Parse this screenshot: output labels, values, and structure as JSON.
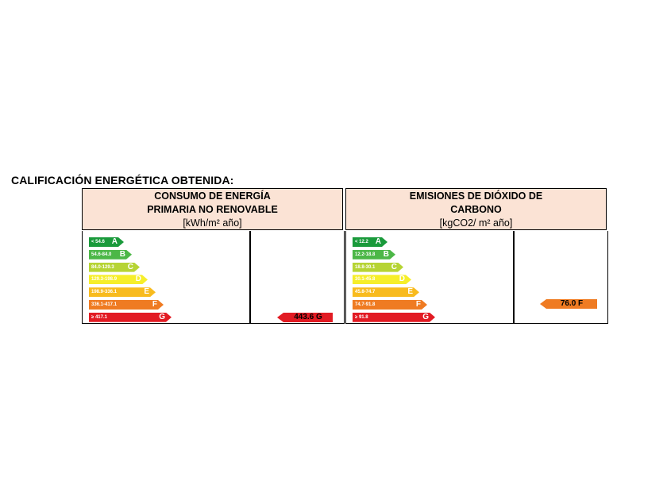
{
  "heading": "CALIFICACIÓN ENERGÉTICA OBTENIDA:",
  "consumo": {
    "title_line1": "CONSUMO DE ENERGÍA",
    "title_line2": "PRIMARIA NO RENOVABLE",
    "unit": "[kWh/m² año]",
    "scale": [
      {
        "range": "< 54.6",
        "letter": "A",
        "color": "#1a9a3b"
      },
      {
        "range": "54.6-84.0",
        "letter": "B",
        "color": "#4cb747"
      },
      {
        "range": "84.0-129.3",
        "letter": "C",
        "color": "#b6d434"
      },
      {
        "range": "129.3-198.9",
        "letter": "D",
        "color": "#f6ee2a"
      },
      {
        "range": "198.9-336.1",
        "letter": "E",
        "color": "#f8bb1e"
      },
      {
        "range": "336.1-417.1",
        "letter": "F",
        "color": "#ef7b22"
      },
      {
        "range": "≥ 417.1",
        "letter": "G",
        "color": "#e21b23"
      }
    ],
    "value": "443.6 G",
    "value_color": "#e21b23"
  },
  "emisiones": {
    "title_line1": "EMISIONES DE DIÓXIDO DE",
    "title_line2": "CARBONO",
    "unit": "[kgCO2/ m² año]",
    "scale": [
      {
        "range": "< 12.2",
        "letter": "A",
        "color": "#1a9a3b"
      },
      {
        "range": "12.2-18.8",
        "letter": "B",
        "color": "#4cb747"
      },
      {
        "range": "18.8-30.1",
        "letter": "C",
        "color": "#b6d434"
      },
      {
        "range": "30.1-45.8",
        "letter": "D",
        "color": "#f6ee2a"
      },
      {
        "range": "45.8-74.7",
        "letter": "E",
        "color": "#f8bb1e"
      },
      {
        "range": "74.7-91.8",
        "letter": "F",
        "color": "#ef7b22"
      },
      {
        "range": "≥ 91.8",
        "letter": "G",
        "color": "#e21b23"
      }
    ],
    "value": "76.0 F",
    "value_color": "#ef7b22"
  }
}
